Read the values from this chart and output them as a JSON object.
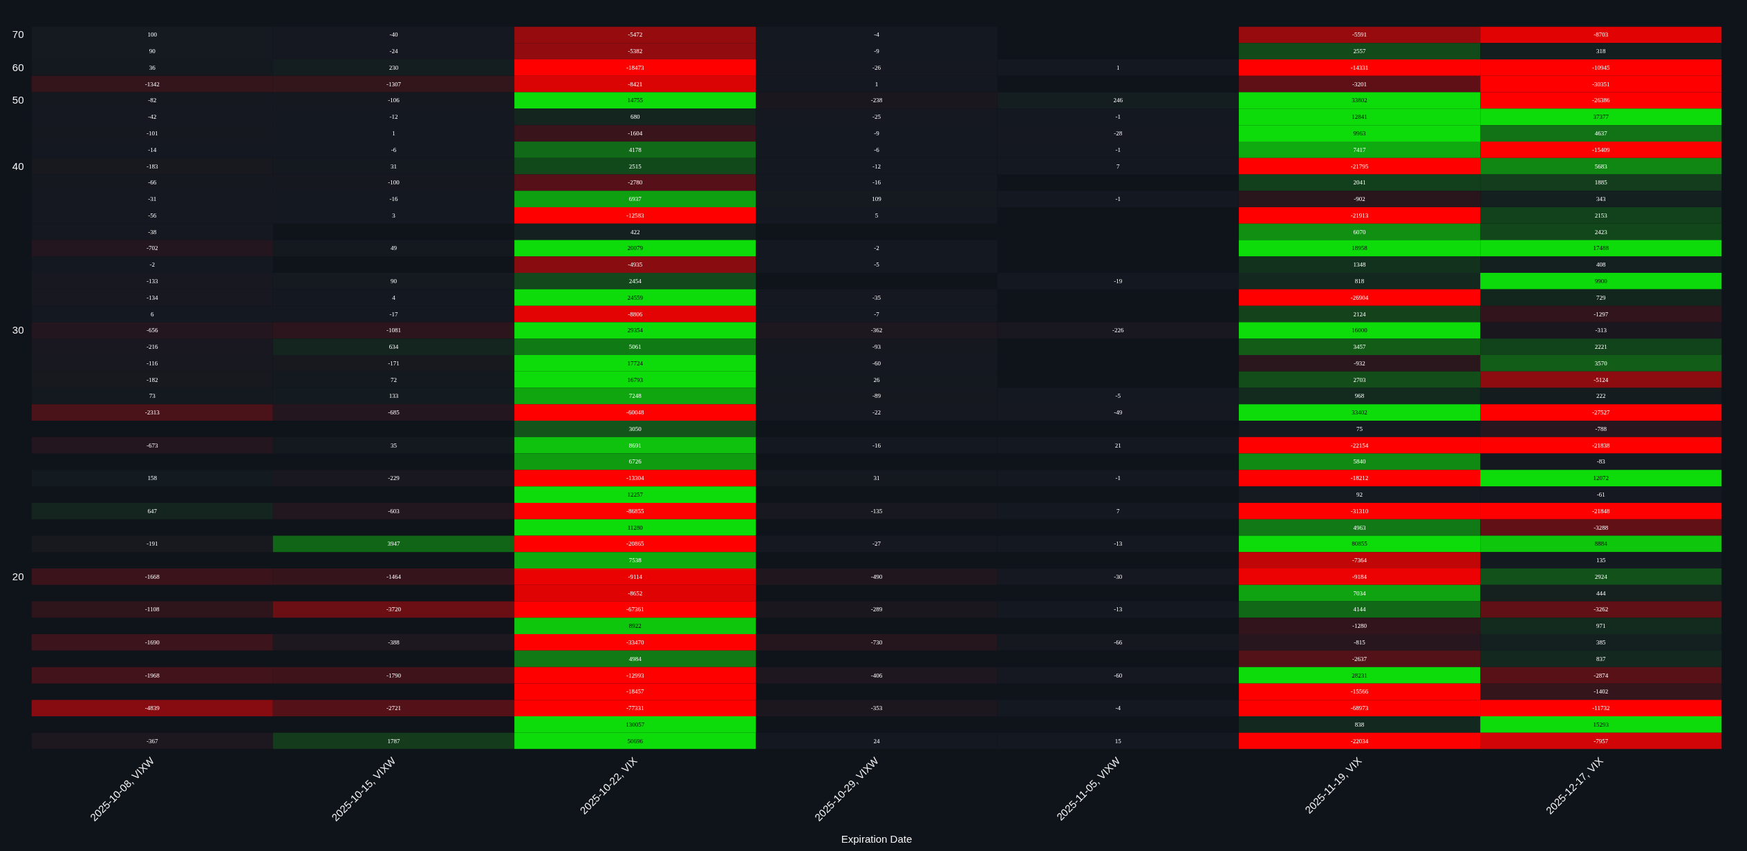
{
  "chart_data": {
    "type": "heatmap",
    "xlabel": "Expiration Date",
    "categories": [
      "2025-10-08, VIXW",
      "2025-10-15, VIXW",
      "2025-10-22, VIX",
      "2025-10-29, VIXW",
      "2025-11-05, VIXW",
      "2025-11-19, VIX",
      "2025-12-17, VIX"
    ],
    "y_categories": [
      "70",
      null,
      "60",
      null,
      "50",
      null,
      null,
      null,
      "40",
      null,
      null,
      null,
      null,
      null,
      null,
      null,
      null,
      null,
      "30",
      null,
      null,
      null,
      null,
      null,
      null,
      null,
      null,
      null,
      null,
      null,
      null,
      null,
      null,
      "20",
      null,
      null,
      null,
      null,
      null,
      null,
      null,
      null,
      null,
      null
    ],
    "colors": [
      "#ff0000",
      "#141820",
      "#0ddc0a"
    ],
    "data_labels": true,
    "cells": [
      [
        100,
        -40,
        -5472,
        -4,
        null,
        -5591,
        -8703
      ],
      [
        90,
        -24,
        -5382,
        -9,
        null,
        2557,
        318
      ],
      [
        36,
        230,
        -18473,
        -26,
        1,
        -14331,
        -10945
      ],
      [
        -1342,
        -1307,
        -8421,
        1,
        null,
        -3201,
        -30351
      ],
      [
        -82,
        -106,
        14755,
        -238,
        246,
        33802,
        -26386
      ],
      [
        -42,
        -12,
        680,
        -25,
        -1,
        12841,
        37377
      ],
      [
        -101,
        1,
        -1604,
        -9,
        -28,
        9963,
        4637
      ],
      [
        -14,
        -6,
        4178,
        -6,
        -1,
        7417,
        -15409
      ],
      [
        -183,
        31,
        2515,
        -12,
        7,
        -21795,
        5683
      ],
      [
        -66,
        -100,
        -2780,
        -16,
        null,
        2041,
        1885
      ],
      [
        -31,
        -16,
        6937,
        109,
        -1,
        -902,
        343
      ],
      [
        -56,
        3,
        -12583,
        5,
        null,
        -21913,
        2153
      ],
      [
        -38,
        null,
        422,
        null,
        null,
        6070,
        2423
      ],
      [
        -702,
        49,
        20079,
        -2,
        null,
        18958,
        17488
      ],
      [
        -2,
        null,
        -4935,
        -5,
        null,
        1348,
        408
      ],
      [
        -133,
        90,
        2454,
        null,
        -19,
        818,
        9900
      ],
      [
        -134,
        4,
        24559,
        -35,
        null,
        -26904,
        729
      ],
      [
        6,
        -17,
        -8806,
        -7,
        null,
        2124,
        -1297
      ],
      [
        -656,
        -1081,
        29354,
        -362,
        -226,
        16000,
        -313
      ],
      [
        -216,
        634,
        5061,
        -93,
        null,
        3457,
        2221
      ],
      [
        -116,
        -171,
        17724,
        -60,
        null,
        -932,
        3570
      ],
      [
        -182,
        72,
        16793,
        26,
        null,
        2703,
        -5124
      ],
      [
        73,
        133,
        7248,
        -89,
        -5,
        968,
        222
      ],
      [
        -2313,
        -685,
        -60048,
        -22,
        -49,
        33402,
        -27527
      ],
      [
        null,
        null,
        3050,
        null,
        null,
        75,
        -788
      ],
      [
        -673,
        35,
        8691,
        -16,
        21,
        -22154,
        -21838
      ],
      [
        null,
        null,
        6726,
        null,
        null,
        5840,
        -83
      ],
      [
        158,
        -229,
        -13304,
        31,
        -1,
        -18212,
        12072
      ],
      [
        null,
        null,
        12257,
        null,
        null,
        92,
        -61
      ],
      [
        647,
        -603,
        -86855,
        -135,
        7,
        -31310,
        -21848
      ],
      [
        null,
        null,
        11280,
        null,
        null,
        4963,
        -3288
      ],
      [
        -191,
        3947,
        -20865,
        -27,
        -13,
        80855,
        8884
      ],
      [
        null,
        null,
        7538,
        null,
        null,
        -7364,
        135
      ],
      [
        -1668,
        -1464,
        -9114,
        -490,
        -30,
        -9184,
        2924
      ],
      [
        null,
        null,
        -8652,
        null,
        null,
        7034,
        444
      ],
      [
        -1108,
        -3720,
        -67361,
        -289,
        -13,
        4144,
        -3262
      ],
      [
        null,
        null,
        8922,
        null,
        null,
        -1280,
        971
      ],
      [
        -1690,
        -388,
        -33470,
        -730,
        -66,
        -815,
        385
      ],
      [
        null,
        null,
        4984,
        null,
        null,
        -2637,
        837
      ],
      [
        -1968,
        -1790,
        -12993,
        -406,
        -60,
        28231,
        -2874
      ],
      [
        null,
        null,
        -18457,
        null,
        null,
        -15566,
        -1402
      ],
      [
        -4839,
        -2721,
        -77331,
        -353,
        -4,
        -68973,
        -11732
      ],
      [
        null,
        null,
        130057,
        null,
        null,
        838,
        15293
      ],
      [
        -367,
        1787,
        50696,
        24,
        15,
        -22034,
        -7957
      ]
    ]
  }
}
